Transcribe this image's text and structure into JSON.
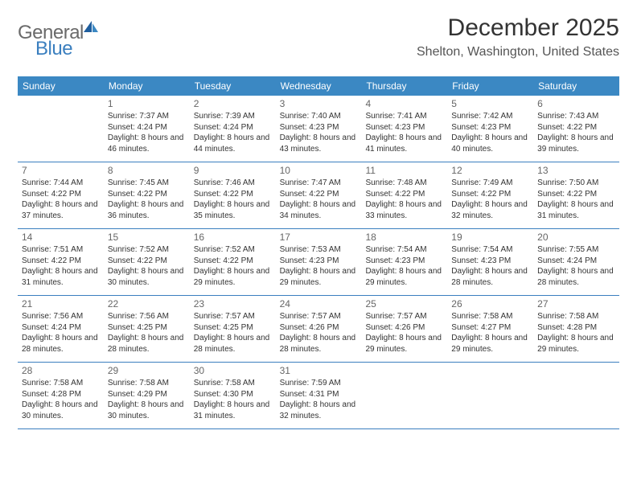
{
  "logo": {
    "general": "General",
    "blue": "Blue"
  },
  "title": "December 2025",
  "location": "Shelton, Washington, United States",
  "header_color": "#3b88c3",
  "rule_color": "#3b7fbf",
  "weekdays": [
    "Sunday",
    "Monday",
    "Tuesday",
    "Wednesday",
    "Thursday",
    "Friday",
    "Saturday"
  ],
  "weeks": [
    [
      null,
      {
        "n": "1",
        "sr": "7:37 AM",
        "ss": "4:24 PM",
        "dl": "8 hours and 46 minutes."
      },
      {
        "n": "2",
        "sr": "7:39 AM",
        "ss": "4:24 PM",
        "dl": "8 hours and 44 minutes."
      },
      {
        "n": "3",
        "sr": "7:40 AM",
        "ss": "4:23 PM",
        "dl": "8 hours and 43 minutes."
      },
      {
        "n": "4",
        "sr": "7:41 AM",
        "ss": "4:23 PM",
        "dl": "8 hours and 41 minutes."
      },
      {
        "n": "5",
        "sr": "7:42 AM",
        "ss": "4:23 PM",
        "dl": "8 hours and 40 minutes."
      },
      {
        "n": "6",
        "sr": "7:43 AM",
        "ss": "4:22 PM",
        "dl": "8 hours and 39 minutes."
      }
    ],
    [
      {
        "n": "7",
        "sr": "7:44 AM",
        "ss": "4:22 PM",
        "dl": "8 hours and 37 minutes."
      },
      {
        "n": "8",
        "sr": "7:45 AM",
        "ss": "4:22 PM",
        "dl": "8 hours and 36 minutes."
      },
      {
        "n": "9",
        "sr": "7:46 AM",
        "ss": "4:22 PM",
        "dl": "8 hours and 35 minutes."
      },
      {
        "n": "10",
        "sr": "7:47 AM",
        "ss": "4:22 PM",
        "dl": "8 hours and 34 minutes."
      },
      {
        "n": "11",
        "sr": "7:48 AM",
        "ss": "4:22 PM",
        "dl": "8 hours and 33 minutes."
      },
      {
        "n": "12",
        "sr": "7:49 AM",
        "ss": "4:22 PM",
        "dl": "8 hours and 32 minutes."
      },
      {
        "n": "13",
        "sr": "7:50 AM",
        "ss": "4:22 PM",
        "dl": "8 hours and 31 minutes."
      }
    ],
    [
      {
        "n": "14",
        "sr": "7:51 AM",
        "ss": "4:22 PM",
        "dl": "8 hours and 31 minutes."
      },
      {
        "n": "15",
        "sr": "7:52 AM",
        "ss": "4:22 PM",
        "dl": "8 hours and 30 minutes."
      },
      {
        "n": "16",
        "sr": "7:52 AM",
        "ss": "4:22 PM",
        "dl": "8 hours and 29 minutes."
      },
      {
        "n": "17",
        "sr": "7:53 AM",
        "ss": "4:23 PM",
        "dl": "8 hours and 29 minutes."
      },
      {
        "n": "18",
        "sr": "7:54 AM",
        "ss": "4:23 PM",
        "dl": "8 hours and 29 minutes."
      },
      {
        "n": "19",
        "sr": "7:54 AM",
        "ss": "4:23 PM",
        "dl": "8 hours and 28 minutes."
      },
      {
        "n": "20",
        "sr": "7:55 AM",
        "ss": "4:24 PM",
        "dl": "8 hours and 28 minutes."
      }
    ],
    [
      {
        "n": "21",
        "sr": "7:56 AM",
        "ss": "4:24 PM",
        "dl": "8 hours and 28 minutes."
      },
      {
        "n": "22",
        "sr": "7:56 AM",
        "ss": "4:25 PM",
        "dl": "8 hours and 28 minutes."
      },
      {
        "n": "23",
        "sr": "7:57 AM",
        "ss": "4:25 PM",
        "dl": "8 hours and 28 minutes."
      },
      {
        "n": "24",
        "sr": "7:57 AM",
        "ss": "4:26 PM",
        "dl": "8 hours and 28 minutes."
      },
      {
        "n": "25",
        "sr": "7:57 AM",
        "ss": "4:26 PM",
        "dl": "8 hours and 29 minutes."
      },
      {
        "n": "26",
        "sr": "7:58 AM",
        "ss": "4:27 PM",
        "dl": "8 hours and 29 minutes."
      },
      {
        "n": "27",
        "sr": "7:58 AM",
        "ss": "4:28 PM",
        "dl": "8 hours and 29 minutes."
      }
    ],
    [
      {
        "n": "28",
        "sr": "7:58 AM",
        "ss": "4:28 PM",
        "dl": "8 hours and 30 minutes."
      },
      {
        "n": "29",
        "sr": "7:58 AM",
        "ss": "4:29 PM",
        "dl": "8 hours and 30 minutes."
      },
      {
        "n": "30",
        "sr": "7:58 AM",
        "ss": "4:30 PM",
        "dl": "8 hours and 31 minutes."
      },
      {
        "n": "31",
        "sr": "7:59 AM",
        "ss": "4:31 PM",
        "dl": "8 hours and 32 minutes."
      },
      null,
      null,
      null
    ]
  ],
  "labels": {
    "sunrise": "Sunrise: ",
    "sunset": "Sunset: ",
    "daylight": "Daylight: "
  }
}
